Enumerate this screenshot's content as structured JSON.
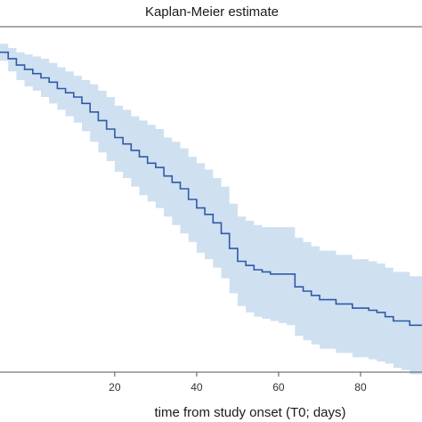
{
  "chart_data": {
    "type": "line",
    "title": "Kaplan-Meier estimate",
    "xlabel": "time from study onset (T0; days)",
    "ylabel": "",
    "xlim": [
      -8,
      95
    ],
    "ylim": [
      0.25,
      1.06
    ],
    "xticks": [
      20,
      40,
      60,
      80
    ],
    "grid": false,
    "legend": "none",
    "colors": {
      "line": "#2f5aa8",
      "band": "#cfe0f1",
      "frame": "#555555",
      "background": "#ffffff"
    },
    "series": [
      {
        "x": [
          -8,
          -6,
          -4,
          -2,
          0,
          2,
          4,
          6,
          8,
          10,
          12,
          14,
          16,
          18,
          20,
          22,
          24,
          26,
          28,
          30,
          32,
          34,
          36,
          38,
          40,
          42,
          44,
          46,
          48,
          50,
          52,
          54,
          56,
          58,
          60,
          62,
          64,
          66,
          68,
          70,
          72,
          74,
          76,
          78,
          80,
          82,
          84,
          86,
          88,
          90,
          92
        ],
        "y": [
          1.0,
          0.985,
          0.97,
          0.96,
          0.95,
          0.94,
          0.93,
          0.915,
          0.905,
          0.895,
          0.88,
          0.86,
          0.84,
          0.82,
          0.8,
          0.785,
          0.77,
          0.755,
          0.74,
          0.73,
          0.71,
          0.695,
          0.68,
          0.655,
          0.635,
          0.62,
          0.6,
          0.575,
          0.54,
          0.51,
          0.5,
          0.49,
          0.485,
          0.48,
          0.48,
          0.48,
          0.45,
          0.44,
          0.43,
          0.42,
          0.42,
          0.41,
          0.41,
          0.4,
          0.4,
          0.395,
          0.39,
          0.38,
          0.37,
          0.37,
          0.36
        ],
        "lower": [
          0.98,
          0.955,
          0.935,
          0.92,
          0.91,
          0.895,
          0.88,
          0.865,
          0.85,
          0.835,
          0.815,
          0.79,
          0.765,
          0.745,
          0.72,
          0.705,
          0.685,
          0.665,
          0.65,
          0.635,
          0.615,
          0.595,
          0.575,
          0.555,
          0.53,
          0.515,
          0.495,
          0.47,
          0.435,
          0.405,
          0.39,
          0.38,
          0.375,
          0.37,
          0.365,
          0.36,
          0.335,
          0.325,
          0.315,
          0.305,
          0.305,
          0.295,
          0.295,
          0.285,
          0.285,
          0.28,
          0.275,
          0.27,
          0.26,
          0.255,
          0.245
        ],
        "upper": [
          1.02,
          1.01,
          1.0,
          0.995,
          0.99,
          0.985,
          0.975,
          0.965,
          0.955,
          0.945,
          0.935,
          0.925,
          0.91,
          0.895,
          0.875,
          0.865,
          0.85,
          0.84,
          0.83,
          0.82,
          0.8,
          0.79,
          0.775,
          0.755,
          0.74,
          0.725,
          0.705,
          0.685,
          0.645,
          0.615,
          0.605,
          0.595,
          0.59,
          0.59,
          0.59,
          0.59,
          0.565,
          0.555,
          0.545,
          0.535,
          0.535,
          0.525,
          0.525,
          0.515,
          0.515,
          0.51,
          0.505,
          0.495,
          0.485,
          0.485,
          0.475
        ]
      }
    ]
  }
}
